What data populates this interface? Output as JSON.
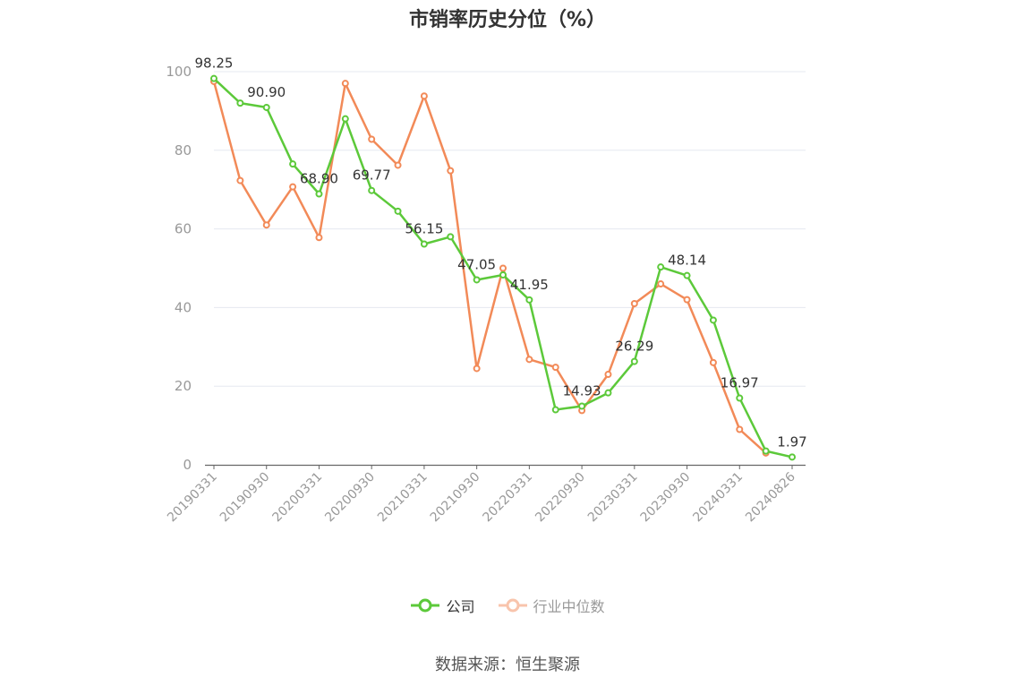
{
  "chart_data": {
    "type": "line",
    "title": "市销率历史分位（%）",
    "ylim": [
      0,
      100
    ],
    "y_ticks": [
      0,
      20,
      40,
      60,
      80,
      100
    ],
    "x_tick_labels": [
      "20190331",
      "20190930",
      "20200331",
      "20200930",
      "20210331",
      "20210930",
      "20220331",
      "20220930",
      "20230331",
      "20230930",
      "20240331",
      "20240826"
    ],
    "grid": "horizontal",
    "legend_position": "bottom",
    "series": [
      {
        "name": "公司",
        "color": "#5cc93a",
        "values": [
          98.25,
          92.0,
          90.9,
          76.5,
          68.9,
          88.0,
          69.77,
          64.5,
          56.15,
          58.0,
          47.05,
          48.3,
          41.95,
          14.0,
          14.93,
          18.3,
          26.29,
          50.3,
          48.14,
          36.8,
          16.97,
          3.5,
          1.97
        ],
        "data_labels": [
          {
            "index": 0,
            "text": "98.25"
          },
          {
            "index": 2,
            "text": "90.90"
          },
          {
            "index": 4,
            "text": "68.90"
          },
          {
            "index": 6,
            "text": "69.77"
          },
          {
            "index": 8,
            "text": "56.15"
          },
          {
            "index": 10,
            "text": "47.05"
          },
          {
            "index": 12,
            "text": "41.95"
          },
          {
            "index": 14,
            "text": "14.93"
          },
          {
            "index": 16,
            "text": "26.29"
          },
          {
            "index": 18,
            "text": "48.14"
          },
          {
            "index": 20,
            "text": "16.97"
          },
          {
            "index": 22,
            "text": "1.97"
          }
        ]
      },
      {
        "name": "行业中位数",
        "color": "#f28a58",
        "values": [
          97.5,
          72.3,
          61.0,
          70.7,
          57.8,
          97.0,
          82.8,
          76.2,
          93.8,
          74.8,
          24.5,
          50.0,
          26.8,
          24.8,
          13.8,
          23.0,
          41.0,
          46.0,
          42.0,
          26.0,
          9.0,
          3.0,
          null
        ]
      }
    ]
  },
  "legend": {
    "company_label": "公司",
    "industry_label": "行业中位数"
  },
  "source_text": "数据来源：恒生聚源"
}
